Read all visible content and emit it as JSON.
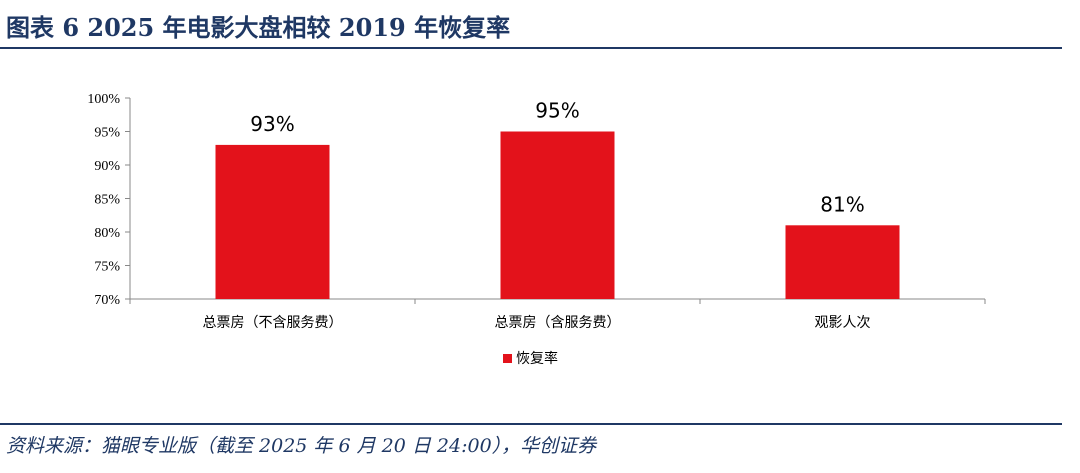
{
  "header": {
    "title": "图表 6   2025 年电影大盘相较 2019 年恢复率"
  },
  "footer": {
    "source": "资料来源：猫眼专业版（截至 2025 年 6 月 20 日 24:00），华创证券"
  },
  "chart_data": {
    "type": "bar",
    "categories": [
      "总票房（不含服务费）",
      "总票房（含服务费）",
      "观影人次"
    ],
    "series": [
      {
        "name": "恢复率",
        "values": [
          93,
          95,
          81
        ],
        "color": "#e3121b"
      }
    ],
    "data_labels": [
      "93%",
      "95%",
      "81%"
    ],
    "yticks": [
      "70%",
      "75%",
      "80%",
      "85%",
      "90%",
      "95%",
      "100%"
    ],
    "ylim": [
      70,
      100
    ],
    "grid": false,
    "legend_position": "bottom"
  }
}
